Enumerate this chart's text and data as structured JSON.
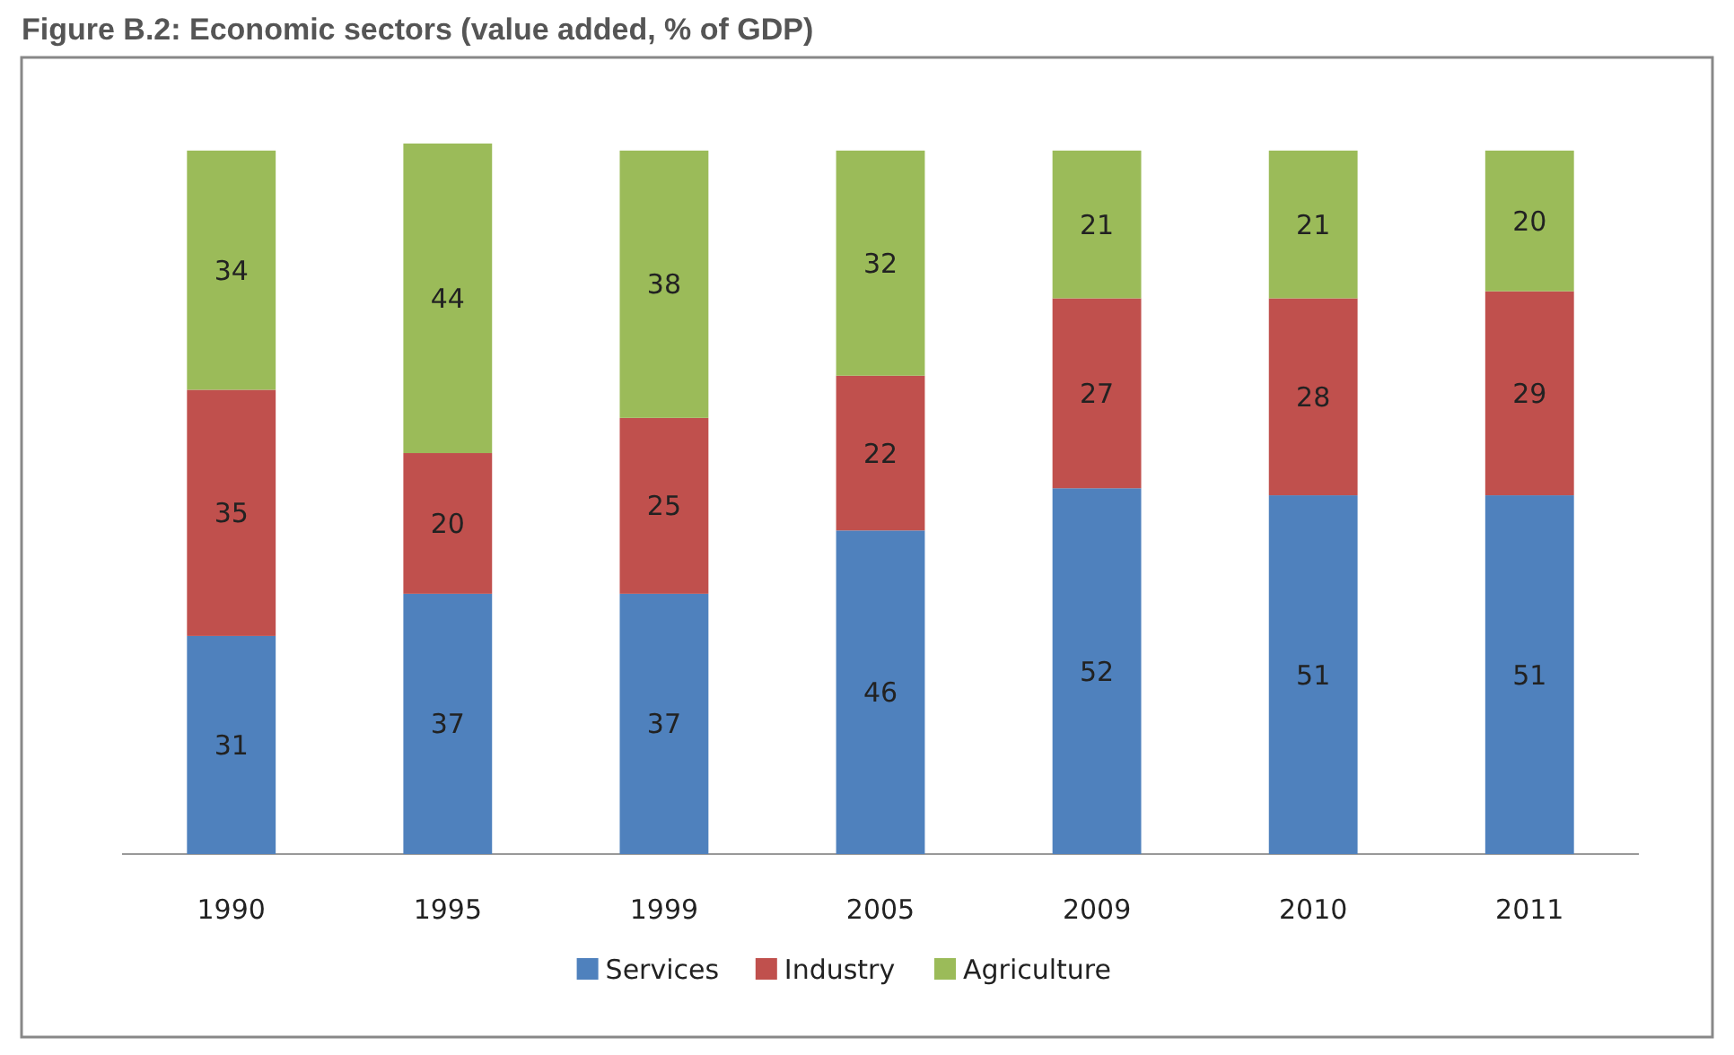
{
  "chart_data": {
    "type": "bar",
    "title": "Figure B.2: Economic sectors (value added, % of GDP)",
    "categories": [
      "1990",
      "1995",
      "1999",
      "2005",
      "2009",
      "2010",
      "2011"
    ],
    "stacked": true,
    "data_labels": true,
    "legend": "bottom",
    "series": [
      {
        "name": "Services",
        "color": "#4f81bd",
        "values": [
          31,
          37,
          37,
          46,
          52,
          51,
          51
        ]
      },
      {
        "name": "Industry",
        "color": "#c0504d",
        "values": [
          35,
          20,
          25,
          22,
          27,
          28,
          29
        ]
      },
      {
        "name": "Agriculture",
        "color": "#9bbb59",
        "values": [
          34,
          44,
          38,
          32,
          21,
          21,
          20
        ]
      }
    ]
  }
}
